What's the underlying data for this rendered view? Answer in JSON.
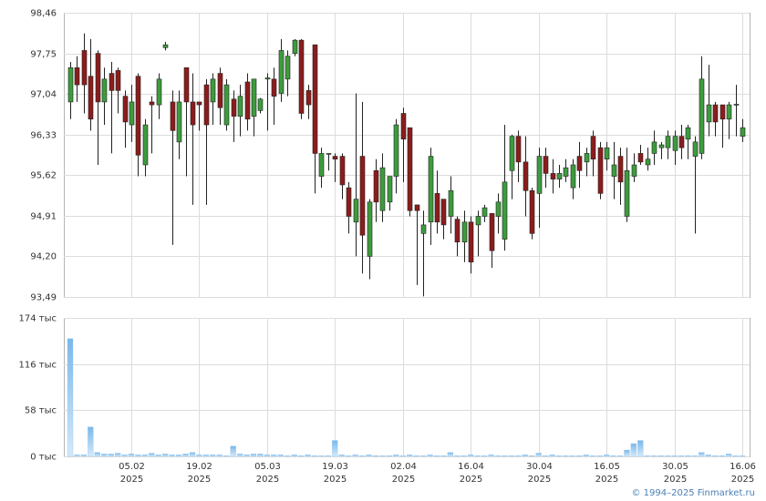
{
  "chart_data": {
    "type": "candlestick",
    "categories": [
      null,
      null,
      null,
      null,
      null,
      null,
      null,
      null,
      null,
      [
        "05.02",
        "2025"
      ],
      null,
      null,
      null,
      null,
      null,
      null,
      null,
      null,
      null,
      [
        "19.02",
        "2025"
      ],
      null,
      null,
      null,
      null,
      null,
      null,
      null,
      null,
      null,
      [
        "05.03",
        "2025"
      ],
      null,
      null,
      null,
      null,
      null,
      null,
      null,
      null,
      null,
      [
        "19.03",
        "2025"
      ],
      null,
      null,
      null,
      null,
      null,
      null,
      null,
      null,
      null,
      [
        "02.04",
        "2025"
      ],
      null,
      null,
      null,
      null,
      null,
      null,
      null,
      null,
      null,
      [
        "16.04",
        "2025"
      ],
      null,
      null,
      null,
      null,
      null,
      null,
      null,
      null,
      null,
      [
        "30.04",
        "2025"
      ],
      null,
      null,
      null,
      null,
      null,
      null,
      null,
      null,
      null,
      [
        "16.05",
        "2025"
      ],
      null,
      null,
      null,
      null,
      null,
      null,
      null,
      null,
      null,
      [
        "30.05",
        "2025"
      ],
      null,
      null,
      null,
      null,
      null,
      null,
      null,
      null,
      null,
      [
        "16.06",
        "2025"
      ]
    ],
    "open": [
      96.9,
      97.5,
      97.8,
      97.35,
      97.75,
      96.9,
      97.4,
      97.45,
      97.0,
      96.5,
      97.35,
      95.8,
      96.9,
      96.85,
      97.85,
      96.9,
      96.2,
      97.5,
      96.9,
      96.9,
      97.2,
      96.9,
      97.4,
      96.5,
      96.95,
      96.65,
      97.25,
      96.65,
      96.75,
      97.3,
      97.3,
      97.05,
      97.3,
      97.75,
      97.98,
      97.1,
      97.9,
      95.6,
      96.0,
      95.95,
      95.95,
      95.4,
      94.8,
      95.95,
      94.2,
      95.7,
      95.0,
      95.15,
      95.6,
      96.7,
      96.45,
      95.1,
      94.6,
      94.8,
      95.3,
      95.2,
      94.9,
      94.85,
      94.45,
      94.8,
      94.75,
      94.9,
      94.95,
      94.9,
      94.5,
      95.7,
      96.3,
      95.85,
      95.35,
      95.3,
      95.95,
      95.65,
      95.55,
      95.6,
      95.4,
      95.95,
      95.85,
      96.3,
      96.1,
      95.9,
      95.6,
      95.95,
      94.9,
      95.6,
      96.0,
      95.8,
      96.0,
      96.1,
      96.1,
      96.05,
      96.3,
      96.25,
      95.95,
      96.0,
      96.55,
      96.85,
      96.85,
      96.6,
      96.85,
      96.3
    ],
    "high": [
      97.6,
      97.7,
      98.1,
      98.0,
      97.8,
      97.5,
      97.6,
      97.5,
      97.1,
      97.2,
      97.4,
      96.6,
      97.0,
      97.4,
      97.95,
      97.1,
      97.1,
      97.5,
      97.4,
      96.9,
      97.3,
      97.4,
      97.5,
      97.3,
      97.1,
      97.2,
      97.4,
      97.3,
      96.97,
      97.4,
      97.5,
      98.0,
      97.8,
      98.0,
      98.0,
      97.2,
      97.9,
      96.1,
      96.0,
      96.0,
      96.0,
      95.5,
      97.05,
      96.9,
      95.2,
      95.9,
      96.0,
      95.6,
      96.6,
      96.8,
      96.45,
      95.1,
      95.0,
      96.1,
      95.7,
      95.2,
      95.6,
      94.9,
      95.0,
      94.9,
      95.0,
      95.1,
      94.95,
      95.3,
      96.5,
      96.33,
      96.4,
      96.3,
      95.4,
      96.1,
      96.1,
      95.9,
      95.8,
      95.9,
      95.9,
      96.2,
      96.1,
      96.4,
      96.2,
      96.2,
      96.2,
      96.1,
      96.1,
      96.0,
      96.15,
      96.1,
      96.4,
      96.2,
      96.4,
      96.4,
      96.5,
      96.5,
      96.3,
      97.7,
      97.55,
      96.9,
      96.85,
      96.9,
      97.2,
      96.6
    ],
    "low": [
      96.6,
      96.9,
      96.7,
      96.4,
      95.8,
      96.5,
      96.0,
      96.7,
      96.1,
      96.2,
      95.6,
      95.6,
      96.0,
      96.6,
      97.8,
      94.4,
      95.9,
      95.6,
      95.1,
      96.4,
      95.1,
      96.5,
      96.5,
      96.4,
      96.2,
      96.3,
      96.4,
      96.3,
      96.7,
      96.4,
      96.5,
      96.9,
      97.0,
      97.7,
      96.6,
      96.6,
      95.3,
      95.4,
      95.7,
      95.5,
      95.2,
      94.6,
      94.2,
      93.9,
      93.8,
      94.8,
      94.8,
      95.0,
      95.3,
      95.5,
      94.9,
      93.7,
      93.5,
      94.4,
      94.6,
      94.5,
      94.6,
      94.2,
      94.1,
      93.9,
      94.2,
      94.8,
      94.0,
      94.6,
      94.3,
      95.2,
      95.5,
      94.9,
      94.5,
      94.7,
      95.4,
      95.3,
      95.4,
      95.5,
      95.2,
      95.4,
      95.6,
      95.6,
      95.2,
      95.7,
      95.2,
      95.1,
      94.8,
      95.5,
      95.8,
      95.7,
      95.8,
      95.9,
      95.9,
      95.8,
      95.9,
      95.9,
      94.6,
      95.9,
      96.3,
      96.3,
      96.1,
      96.25,
      96.3,
      96.2
    ],
    "close": [
      97.5,
      97.2,
      97.2,
      96.6,
      96.9,
      97.3,
      97.1,
      97.1,
      96.55,
      96.9,
      95.97,
      96.5,
      96.85,
      97.3,
      97.9,
      96.4,
      96.9,
      96.9,
      96.5,
      96.85,
      96.5,
      97.3,
      96.8,
      97.2,
      96.65,
      97.0,
      96.6,
      97.3,
      96.95,
      97.32,
      97.0,
      97.8,
      97.7,
      97.98,
      96.7,
      96.85,
      96.0,
      96.0,
      96.0,
      95.9,
      95.45,
      94.9,
      95.2,
      94.57,
      95.15,
      95.15,
      95.75,
      95.6,
      96.5,
      96.25,
      95.0,
      95.0,
      94.75,
      95.95,
      94.8,
      94.75,
      95.35,
      94.45,
      94.8,
      94.1,
      94.9,
      95.05,
      94.3,
      95.15,
      95.5,
      96.3,
      95.85,
      95.35,
      94.6,
      95.95,
      95.65,
      95.55,
      95.65,
      95.75,
      95.8,
      95.7,
      96.0,
      95.9,
      95.3,
      96.1,
      95.8,
      95.5,
      95.7,
      95.8,
      95.85,
      95.9,
      96.2,
      96.15,
      96.3,
      96.3,
      96.1,
      96.45,
      96.2,
      97.3,
      96.85,
      96.55,
      96.6,
      96.85,
      96.86,
      96.45
    ],
    "up_color": "#3d9c3d",
    "down_color": "#8c1c1c",
    "ylim": [
      93.49,
      98.46
    ],
    "yticks": [
      {
        "value": 93.49,
        "label": "93,49"
      },
      {
        "value": 94.2,
        "label": "94,20"
      },
      {
        "value": 94.91,
        "label": "94,91"
      },
      {
        "value": 95.62,
        "label": "95,62"
      },
      {
        "value": 96.33,
        "label": "96,33"
      },
      {
        "value": 97.04,
        "label": "97,04"
      },
      {
        "value": 97.75,
        "label": "97,75"
      },
      {
        "value": 98.46,
        "label": "98,46"
      }
    ],
    "grid": true,
    "volume": {
      "values": [
        148,
        2,
        2,
        37,
        5,
        3,
        3,
        4,
        2,
        3,
        2,
        2,
        4,
        2,
        3,
        2,
        2,
        3,
        5,
        2,
        2,
        2,
        2,
        1,
        13,
        3,
        2,
        3,
        3,
        2,
        2,
        2,
        1,
        2,
        1,
        2,
        1,
        1,
        1,
        20,
        2,
        1,
        2,
        1,
        2,
        1,
        1,
        1,
        2,
        1,
        2,
        1,
        1,
        2,
        1,
        1,
        5,
        1,
        1,
        2,
        1,
        1,
        2,
        1,
        1,
        1,
        1,
        2,
        1,
        4,
        1,
        2,
        1,
        1,
        1,
        1,
        2,
        1,
        1,
        2,
        1,
        1,
        8,
        16,
        20,
        1,
        1,
        1,
        1,
        1,
        1,
        1,
        1,
        5,
        2,
        1,
        1,
        3,
        1,
        1
      ],
      "color": "#8fc3ee",
      "ylim": [
        0,
        174
      ],
      "yticks": [
        {
          "value": 0,
          "label": "0 тыс"
        },
        {
          "value": 58,
          "label": "58 тыс"
        },
        {
          "value": 116,
          "label": "116 тыс"
        },
        {
          "value": 174,
          "label": "174 тыс"
        }
      ]
    },
    "credit": "© 1994–2025 Finmarket.ru"
  }
}
